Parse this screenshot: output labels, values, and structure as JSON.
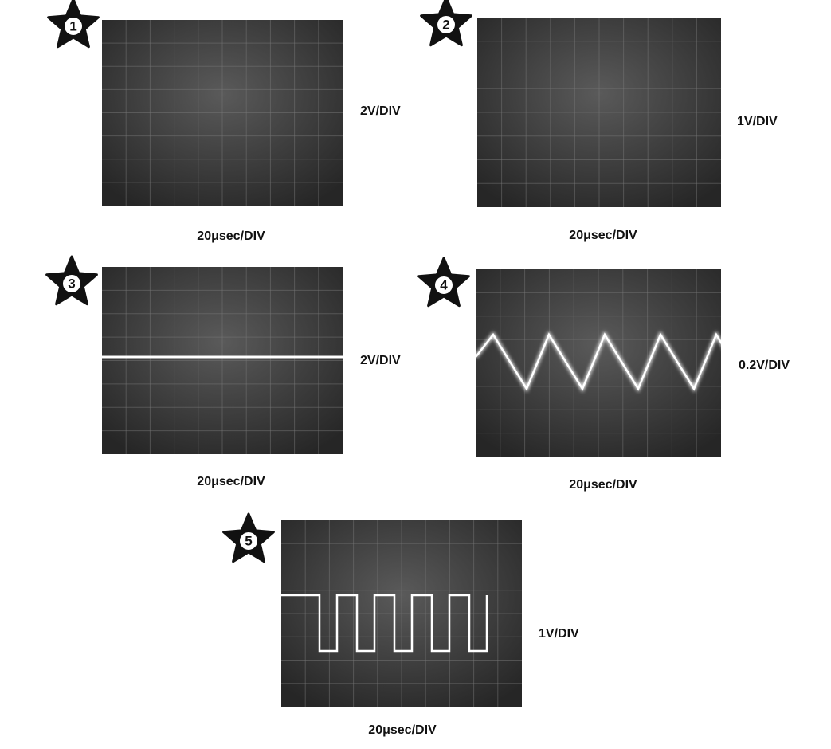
{
  "panels": [
    {
      "number": "1",
      "volts": "2V/DIV",
      "time": "20μsec/DIV"
    },
    {
      "number": "2",
      "volts": "1V/DIV",
      "time": "20μsec/DIV"
    },
    {
      "number": "3",
      "volts": "2V/DIV",
      "time": "20μsec/DIV"
    },
    {
      "number": "4",
      "volts": "0.2V/DIV",
      "time": "20μsec/DIV"
    },
    {
      "number": "5",
      "volts": "1V/DIV",
      "time": "20μsec/DIV"
    }
  ]
}
